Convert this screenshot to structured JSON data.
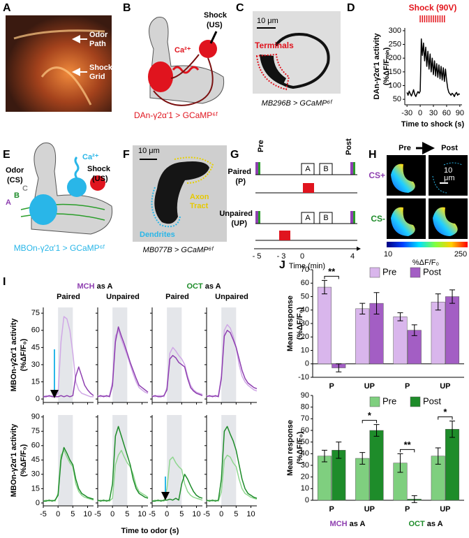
{
  "panels": {
    "A": {
      "label": "A",
      "notes": [
        "Odor",
        "Path",
        "Shock",
        "Grid"
      ]
    },
    "B": {
      "label": "B",
      "ca": "Ca²⁺",
      "shock": "Shock",
      "us": "(US)",
      "caption": "DAn-γ2α'1 > GCaMP⁶ᶠ"
    },
    "C": {
      "label": "C",
      "scale": "10 μm",
      "region": "Terminals",
      "caption": "MB296B > GCaMP⁶ᶠ"
    },
    "D": {
      "label": "D"
    },
    "E": {
      "label": "E",
      "odor": "Odor",
      "cs": "(CS)",
      "ca": "Ca²⁺",
      "shock": "Shock",
      "us": "(US)",
      "odors": [
        "A",
        "B",
        "C"
      ],
      "caption": "MBOn-γ2α'1 > GCaMP⁶ᶠ"
    },
    "F": {
      "label": "F",
      "scale": "10 μm",
      "axon": [
        "Axon",
        "Tract"
      ],
      "dendrites": "Dendrites",
      "caption": "MB077B > GCaMP⁶ᶠ"
    },
    "G": {
      "label": "G",
      "pre": "Pre",
      "post": "Post",
      "rows": [
        [
          "Paired",
          "(P)"
        ],
        [
          "Unpaired",
          "(UP)"
        ]
      ],
      "odors": [
        "A",
        "B"
      ],
      "ticks": [
        "- 5",
        "- 3",
        "0",
        "4"
      ],
      "xlabel": "Time (min)"
    },
    "H": {
      "label": "H",
      "pre": "Pre",
      "post": "Post",
      "scale": [
        "10",
        "μm"
      ],
      "rows": [
        "CS+",
        "CS-"
      ],
      "cbar": [
        "10",
        "250"
      ],
      "cbar_label": "%ΔF/F₀"
    },
    "I": {
      "label": "I",
      "groups": [
        [
          "MCH",
          "as A"
        ],
        [
          "OCT",
          "as A"
        ]
      ],
      "conditions": [
        "Paired",
        "Unpaired",
        "Paired",
        "Unpaired"
      ],
      "ylabel": [
        "MBOn-γ2α'1 activity",
        "(%ΔF/F₀)"
      ],
      "xlabel": "Time to odor (s)",
      "odor_window": [
        0,
        5
      ]
    },
    "J": {
      "label": "J",
      "groups": [
        [
          "MCH",
          "as A"
        ],
        [
          "OCT",
          "as A"
        ]
      ]
    }
  },
  "chart_data": [
    {
      "type": "line",
      "title": "Shock (90V)",
      "ylabel": [
        "DAn-γ2α'1 activity",
        "(%ΔF/Fₘᵢₙ)"
      ],
      "xlabel": "Time to shock (s)",
      "x": [
        -30,
        -27.5,
        -25,
        -22.5,
        -20,
        -17.5,
        -15,
        -12.5,
        -10,
        -7.5,
        -5,
        -2.5,
        0,
        2.5,
        5,
        7.5,
        10,
        12.5,
        15,
        17.5,
        20,
        22.5,
        25,
        27.5,
        30,
        32.5,
        35,
        37.5,
        40,
        42.5,
        45,
        47.5,
        50,
        52.5,
        55,
        57.5,
        60,
        62.5,
        65,
        67.5,
        70,
        72.5,
        75,
        77.5,
        80,
        82.5,
        85,
        87.5,
        90
      ],
      "series": [
        {
          "color": "#000000",
          "values": [
            75,
            65,
            80,
            70,
            62,
            72,
            85,
            68,
            60,
            70,
            78,
            72,
            80,
            270,
            210,
            255,
            190,
            240,
            170,
            225,
            160,
            215,
            150,
            200,
            140,
            190,
            135,
            180,
            130,
            175,
            125,
            170,
            120,
            165,
            115,
            160,
            120,
            90,
            75,
            70,
            65,
            72,
            68,
            60,
            70,
            75,
            65,
            70,
            68
          ]
        }
      ],
      "shock_times": [
        0,
        5,
        10,
        15,
        20,
        25,
        30,
        35,
        40,
        45,
        50,
        55
      ],
      "shock_color": "#e3141b",
      "xlim": [
        -35,
        95
      ],
      "xticks": [
        -30,
        0,
        30,
        60,
        90
      ],
      "ylim": [
        30,
        310
      ],
      "yticks": [
        50,
        100,
        150,
        200,
        250,
        300
      ]
    },
    {
      "type": "line",
      "x": [
        -5,
        -4,
        -3,
        -2,
        -1,
        0,
        1,
        2,
        3,
        4,
        5,
        6,
        7,
        8,
        9,
        10,
        11,
        12
      ],
      "xlim": [
        -5,
        12
      ],
      "xticks": [
        -5,
        0,
        5,
        10
      ],
      "ylim": [
        -3,
        80
      ],
      "yticks": [
        0,
        15,
        30,
        45,
        60,
        75
      ],
      "series": [
        {
          "color": "#d0a8e6",
          "values": [
            2,
            3,
            2,
            3,
            2,
            5,
            50,
            72,
            70,
            60,
            40,
            15,
            8,
            5,
            4,
            3,
            2,
            2
          ]
        },
        {
          "color": "#8e3fb0",
          "values": [
            2,
            2,
            3,
            2,
            2,
            2,
            3,
            2,
            3,
            2,
            3,
            20,
            28,
            20,
            12,
            8,
            5,
            3
          ]
        }
      ]
    },
    {
      "type": "line",
      "x": [
        -5,
        -4,
        -3,
        -2,
        -1,
        0,
        1,
        2,
        3,
        4,
        5,
        6,
        7,
        8,
        9,
        10,
        11,
        12
      ],
      "xlim": [
        -5,
        12
      ],
      "xticks": [
        -5,
        0,
        5,
        10
      ],
      "ylim": [
        -3,
        80
      ],
      "yticks": [
        0,
        15,
        30,
        45,
        60,
        75
      ],
      "series": [
        {
          "color": "#d0a8e6",
          "values": [
            3,
            2,
            3,
            2,
            3,
            15,
            55,
            60,
            52,
            45,
            38,
            30,
            22,
            15,
            10,
            8,
            6,
            5
          ]
        },
        {
          "color": "#8e3fb0",
          "values": [
            2,
            3,
            2,
            3,
            2,
            12,
            50,
            63,
            55,
            48,
            40,
            32,
            25,
            18,
            12,
            10,
            8,
            6
          ]
        }
      ]
    },
    {
      "type": "line",
      "x": [
        -5,
        -4,
        -3,
        -2,
        -1,
        0,
        1,
        2,
        3,
        4,
        5,
        6,
        7,
        8,
        9,
        10,
        11,
        12
      ],
      "xlim": [
        -5,
        12
      ],
      "xticks": [
        -5,
        0,
        5,
        10
      ],
      "ylim": [
        -3,
        80
      ],
      "yticks": [
        0,
        15,
        30,
        45,
        60,
        75
      ],
      "series": [
        {
          "color": "#d0a8e6",
          "values": [
            3,
            2,
            3,
            3,
            2,
            10,
            40,
            45,
            42,
            38,
            35,
            30,
            20,
            12,
            8,
            6,
            5,
            4
          ]
        },
        {
          "color": "#8e3fb0",
          "values": [
            2,
            3,
            2,
            2,
            3,
            8,
            35,
            38,
            36,
            32,
            30,
            28,
            18,
            10,
            7,
            5,
            4,
            3
          ]
        }
      ]
    },
    {
      "type": "line",
      "x": [
        -5,
        -4,
        -3,
        -2,
        -1,
        0,
        1,
        2,
        3,
        4,
        5,
        6,
        7,
        8,
        9,
        10,
        11,
        12
      ],
      "xlim": [
        -5,
        12
      ],
      "xticks": [
        -5,
        0,
        5,
        10
      ],
      "ylim": [
        -3,
        80
      ],
      "yticks": [
        0,
        15,
        30,
        45,
        60,
        75
      ],
      "series": [
        {
          "color": "#d0a8e6",
          "values": [
            3,
            2,
            3,
            2,
            3,
            20,
            60,
            65,
            62,
            55,
            45,
            30,
            20,
            15,
            12,
            10,
            8,
            7
          ]
        },
        {
          "color": "#8e3fb0",
          "values": [
            2,
            3,
            2,
            3,
            2,
            18,
            55,
            60,
            58,
            52,
            45,
            35,
            25,
            18,
            14,
            12,
            10,
            9
          ]
        }
      ]
    },
    {
      "type": "line",
      "x": [
        -5,
        -4,
        -3,
        -2,
        -1,
        0,
        1,
        2,
        3,
        4,
        5,
        6,
        7,
        8,
        9,
        10,
        11,
        12
      ],
      "xlim": [
        -5,
        12
      ],
      "xticks": [
        -5,
        0,
        5,
        10
      ],
      "ylim": [
        -3,
        92
      ],
      "yticks": [
        0,
        15,
        30,
        45,
        60,
        75,
        90
      ],
      "series": [
        {
          "color": "#8fd68f",
          "values": [
            2,
            3,
            2,
            3,
            2,
            10,
            50,
            55,
            48,
            42,
            38,
            20,
            12,
            8,
            6,
            5,
            4,
            3
          ]
        },
        {
          "color": "#1e8c2a",
          "values": [
            2,
            2,
            3,
            2,
            3,
            8,
            45,
            58,
            52,
            45,
            40,
            25,
            15,
            10,
            8,
            6,
            5,
            4
          ]
        }
      ]
    },
    {
      "type": "line",
      "x": [
        -5,
        -4,
        -3,
        -2,
        -1,
        0,
        1,
        2,
        3,
        4,
        5,
        6,
        7,
        8,
        9,
        10,
        11,
        12
      ],
      "xlim": [
        -5,
        12
      ],
      "xticks": [
        -5,
        0,
        5,
        10
      ],
      "ylim": [
        -3,
        92
      ],
      "yticks": [
        0,
        15,
        30,
        45,
        60,
        75,
        90
      ],
      "series": [
        {
          "color": "#8fd68f",
          "values": [
            2,
            3,
            2,
            3,
            2,
            5,
            40,
            50,
            55,
            48,
            42,
            38,
            30,
            18,
            12,
            10,
            8,
            6
          ]
        },
        {
          "color": "#1e8c2a",
          "values": [
            3,
            2,
            3,
            2,
            3,
            20,
            70,
            80,
            70,
            60,
            50,
            40,
            25,
            15,
            10,
            8,
            6,
            5
          ]
        }
      ]
    },
    {
      "type": "line",
      "x": [
        -5,
        -4,
        -3,
        -2,
        -1,
        0,
        1,
        2,
        3,
        4,
        5,
        6,
        7,
        8,
        9,
        10,
        11,
        12
      ],
      "xlim": [
        -5,
        12
      ],
      "xticks": [
        -5,
        0,
        5,
        10
      ],
      "ylim": [
        -3,
        92
      ],
      "yticks": [
        0,
        15,
        30,
        45,
        60,
        75,
        90
      ],
      "series": [
        {
          "color": "#8fd68f",
          "values": [
            2,
            3,
            2,
            3,
            2,
            15,
            45,
            48,
            42,
            38,
            35,
            20,
            12,
            8,
            6,
            5,
            4,
            3
          ]
        },
        {
          "color": "#1e8c2a",
          "values": [
            2,
            2,
            3,
            2,
            3,
            3,
            4,
            3,
            5,
            3,
            20,
            30,
            25,
            18,
            12,
            8,
            6,
            5
          ]
        }
      ]
    },
    {
      "type": "line",
      "x": [
        -5,
        -4,
        -3,
        -2,
        -1,
        0,
        1,
        2,
        3,
        4,
        5,
        6,
        7,
        8,
        9,
        10,
        11,
        12
      ],
      "xlim": [
        -5,
        12
      ],
      "xticks": [
        -5,
        0,
        5,
        10
      ],
      "ylim": [
        -3,
        92
      ],
      "yticks": [
        0,
        15,
        30,
        45,
        60,
        75,
        90
      ],
      "series": [
        {
          "color": "#8fd68f",
          "values": [
            2,
            3,
            2,
            3,
            2,
            12,
            45,
            50,
            48,
            42,
            38,
            25,
            15,
            10,
            8,
            6,
            5,
            4
          ]
        },
        {
          "color": "#1e8c2a",
          "values": [
            3,
            2,
            3,
            2,
            3,
            25,
            75,
            80,
            72,
            65,
            55,
            40,
            25,
            15,
            10,
            8,
            6,
            5
          ]
        }
      ]
    },
    {
      "type": "bar",
      "ylabel": [
        "Mean response",
        "(%ΔF/F₀)"
      ],
      "categories": [
        "P",
        "UP",
        "P",
        "UP"
      ],
      "ylim": [
        -10,
        70
      ],
      "yticks": [
        -10,
        0,
        10,
        20,
        30,
        40,
        50,
        60,
        70
      ],
      "series": [
        {
          "name": "Pre",
          "color": "#d9b6ec",
          "values": [
            57,
            41,
            35,
            46
          ],
          "errors": [
            5,
            4,
            3,
            6
          ]
        },
        {
          "name": "Post",
          "color": "#a35ec4",
          "values": [
            -3,
            45,
            25,
            50
          ],
          "errors": [
            3,
            8,
            4,
            5
          ]
        }
      ],
      "annotations": [
        "**",
        null,
        null,
        null
      ]
    },
    {
      "type": "bar",
      "ylabel": [
        "Mean response",
        "(%ΔF/F₀)"
      ],
      "categories": [
        "P",
        "UP",
        "P",
        "UP"
      ],
      "ylim": [
        0,
        90
      ],
      "yticks": [
        0,
        10,
        20,
        30,
        40,
        50,
        60,
        70,
        80,
        90
      ],
      "series": [
        {
          "name": "Pre",
          "color": "#7fcf7f",
          "values": [
            38,
            36,
            32,
            38
          ],
          "errors": [
            5,
            5,
            8,
            7
          ]
        },
        {
          "name": "Post",
          "color": "#1e8c2a",
          "values": [
            43,
            60,
            1,
            61
          ],
          "errors": [
            7,
            5,
            3,
            7
          ]
        }
      ],
      "annotations": [
        null,
        "*",
        "**",
        "*"
      ]
    }
  ]
}
